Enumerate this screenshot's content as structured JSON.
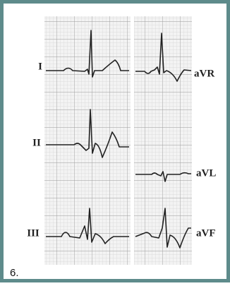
{
  "lead_labels": [
    "I",
    "II",
    "III",
    "aVR",
    "aVL",
    "aVF"
  ],
  "caption": "6."
}
